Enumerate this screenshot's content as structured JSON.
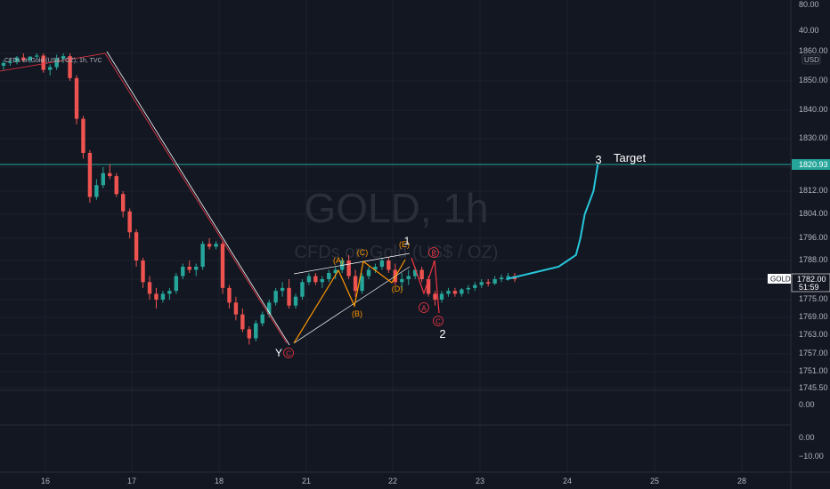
{
  "watermark": {
    "symbol": "GOLD, 1h",
    "description": "CFDs on Gold (US$ / OZ)"
  },
  "symbol_label": "CFDs on Gold (US$ / OZ), 1h, TVC",
  "currency": "USD",
  "price_tag": {
    "symbol": "GOLD",
    "price": "1782.00",
    "countdown": "51:59"
  },
  "target_tag": "1820.93",
  "annotations": {
    "target": "Target",
    "wave3": "3",
    "wave1": "1",
    "wave2": "2",
    "y": "Y",
    "A": "(A)",
    "B": "(B)",
    "C": "(C)",
    "D": "(D)",
    "E": "(E)",
    "circA": "A",
    "circB": "B",
    "circC": "C"
  },
  "indicator_pane1": {
    "labels": [
      "0.00"
    ]
  },
  "indicator_pane2": {
    "labels": [
      "0.00",
      "−10.00"
    ]
  },
  "colors": {
    "up": "#26a69a",
    "down": "#ef5350",
    "bg": "#131722",
    "grid": "#1e222d",
    "accent": "#26c6da",
    "orange": "#ff9800",
    "red": "#f23645",
    "target": "#26a69a"
  },
  "chart_data": {
    "type": "candlestick",
    "title": "CFDs on Gold (US$ / OZ), 1h, TVC",
    "x_ticks": [
      "16",
      "17",
      "18",
      "21",
      "22",
      "23",
      "24",
      "25",
      "28"
    ],
    "y_ticks": [
      "80.00",
      "40.00",
      "1860.00",
      "1850.00",
      "1840.00",
      "1830.00",
      "1820.00",
      "1812.00",
      "1804.00",
      "1796.00",
      "1788.00",
      "1782.00",
      "1775.00",
      "1769.00",
      "1763.00",
      "1757.00",
      "1751.00",
      "1745.50"
    ],
    "ylim": [
      1745.5,
      1860
    ],
    "last_price": 1782.0,
    "target_level": 1820.93,
    "candles": [
      [
        1855.5,
        1857.5,
        1854,
        1856.5
      ],
      [
        1856.5,
        1858,
        1855.5,
        1857
      ],
      [
        1857,
        1859,
        1856,
        1858.5
      ],
      [
        1858.5,
        1860,
        1857,
        1857.5
      ],
      [
        1857.5,
        1859,
        1856.5,
        1858.8
      ],
      [
        1858.8,
        1860,
        1858,
        1859.2
      ],
      [
        1859.2,
        1860,
        1853,
        1854
      ],
      [
        1854,
        1856,
        1852,
        1855
      ],
      [
        1855,
        1859.5,
        1854,
        1858
      ],
      [
        1858,
        1860,
        1856.5,
        1859
      ],
      [
        1859,
        1860,
        1850,
        1851
      ],
      [
        1851,
        1852,
        1835,
        1837
      ],
      [
        1837,
        1838,
        1823,
        1825
      ],
      [
        1825,
        1826,
        1808,
        1810
      ],
      [
        1810,
        1816,
        1809,
        1814
      ],
      [
        1814,
        1820,
        1813,
        1818
      ],
      [
        1818,
        1821,
        1816,
        1817
      ],
      [
        1817,
        1818,
        1810,
        1811
      ],
      [
        1811,
        1812,
        1803,
        1805
      ],
      [
        1805,
        1806,
        1796,
        1798
      ],
      [
        1798,
        1799,
        1786,
        1788
      ],
      [
        1788,
        1789,
        1779,
        1781
      ],
      [
        1781,
        1783,
        1775,
        1777
      ],
      [
        1777,
        1779,
        1772,
        1775
      ],
      [
        1775,
        1778,
        1774,
        1777
      ],
      [
        1777,
        1779,
        1775,
        1778
      ],
      [
        1778,
        1784,
        1777,
        1783
      ],
      [
        1783,
        1787,
        1782,
        1786
      ],
      [
        1786,
        1788,
        1784,
        1785
      ],
      [
        1785,
        1787,
        1783,
        1786
      ],
      [
        1786,
        1795,
        1785,
        1794
      ],
      [
        1794,
        1796,
        1792,
        1793
      ],
      [
        1793,
        1795,
        1792,
        1794
      ],
      [
        1794,
        1795,
        1777,
        1779
      ],
      [
        1779,
        1780,
        1772,
        1774
      ],
      [
        1774,
        1776,
        1768,
        1770
      ],
      [
        1770,
        1772,
        1764,
        1765
      ],
      [
        1765,
        1766,
        1760,
        1762
      ],
      [
        1762,
        1768,
        1761,
        1767
      ],
      [
        1767,
        1771,
        1766,
        1770
      ],
      [
        1770,
        1775,
        1769,
        1774
      ],
      [
        1774,
        1779,
        1773,
        1778
      ],
      [
        1778,
        1781,
        1776,
        1779
      ],
      [
        1779,
        1782,
        1772,
        1773
      ],
      [
        1773,
        1777,
        1772,
        1776
      ],
      [
        1776,
        1782,
        1775,
        1781
      ],
      [
        1781,
        1784,
        1780,
        1783
      ],
      [
        1783,
        1784,
        1780,
        1781
      ],
      [
        1781,
        1783,
        1779,
        1782
      ],
      [
        1782,
        1785,
        1781,
        1784
      ],
      [
        1784,
        1786,
        1782,
        1785
      ],
      [
        1785,
        1789,
        1784,
        1788
      ],
      [
        1788,
        1790,
        1782,
        1783
      ],
      [
        1783,
        1785,
        1776,
        1778
      ],
      [
        1778,
        1784,
        1777,
        1783
      ],
      [
        1783,
        1786,
        1782,
        1785
      ],
      [
        1785,
        1787,
        1784,
        1786
      ],
      [
        1786,
        1789,
        1785,
        1788
      ],
      [
        1788,
        1789,
        1784,
        1785
      ],
      [
        1785,
        1787,
        1780,
        1781
      ],
      [
        1781,
        1784,
        1778,
        1782
      ],
      [
        1782,
        1785,
        1780,
        1783
      ],
      [
        1783,
        1786,
        1782,
        1785
      ],
      [
        1785,
        1786,
        1781,
        1782
      ],
      [
        1782,
        1783,
        1776,
        1777
      ],
      [
        1777,
        1778,
        1773,
        1775
      ],
      [
        1775,
        1778,
        1774,
        1777
      ],
      [
        1777,
        1779,
        1776,
        1778
      ],
      [
        1778,
        1779,
        1776,
        1777
      ],
      [
        1777,
        1779,
        1776,
        1778.5
      ],
      [
        1778.5,
        1780,
        1777,
        1779
      ],
      [
        1779,
        1781,
        1778,
        1780
      ],
      [
        1780,
        1782,
        1779,
        1781
      ],
      [
        1781,
        1782,
        1779.5,
        1780.5
      ],
      [
        1780.5,
        1783,
        1780,
        1782
      ],
      [
        1782,
        1783.5,
        1781,
        1782.5
      ],
      [
        1782.5,
        1784,
        1781.5,
        1783
      ],
      [
        1783,
        1784,
        1781,
        1782
      ]
    ],
    "projection": [
      [
        23.3,
        1782
      ],
      [
        23.6,
        1784
      ],
      [
        23.9,
        1786
      ],
      [
        24.1,
        1790
      ],
      [
        24.15,
        1796
      ],
      [
        24.2,
        1804
      ],
      [
        24.3,
        1812
      ],
      [
        24.35,
        1820.93
      ]
    ],
    "grid": true
  }
}
